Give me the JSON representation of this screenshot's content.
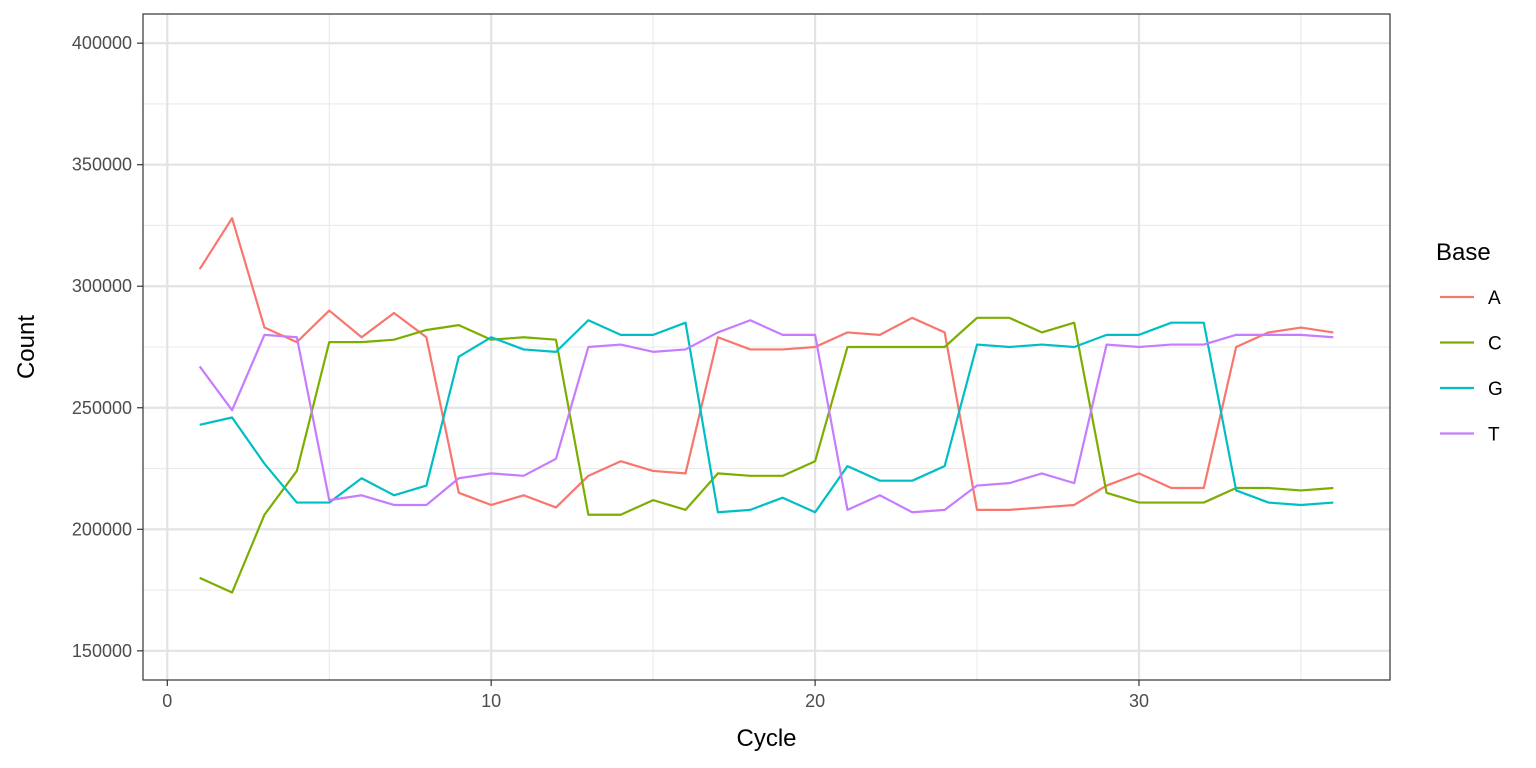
{
  "chart_data": {
    "type": "line",
    "title": "",
    "xlabel": "Cycle",
    "ylabel": "Count",
    "xlim": [
      -0.75,
      37.75
    ],
    "ylim": [
      138000,
      412000
    ],
    "x_ticks": [
      0,
      10,
      20,
      30
    ],
    "y_ticks": [
      150000,
      200000,
      250000,
      300000,
      350000,
      400000
    ],
    "x_tick_labels": [
      "0",
      "10",
      "20",
      "30"
    ],
    "y_tick_labels": [
      "150000",
      "200000",
      "250000",
      "300000",
      "350000",
      "400000"
    ],
    "grid": true,
    "legend": {
      "title": "Base",
      "position": "right"
    },
    "x": [
      1,
      2,
      3,
      4,
      5,
      6,
      7,
      8,
      9,
      10,
      11,
      12,
      13,
      14,
      15,
      16,
      17,
      18,
      19,
      20,
      21,
      22,
      23,
      24,
      25,
      26,
      27,
      28,
      29,
      30,
      31,
      32,
      33,
      34,
      35,
      36
    ],
    "series": [
      {
        "name": "A",
        "color": "#F8766D",
        "values": [
          307000,
          328000,
          283000,
          277000,
          290000,
          279000,
          289000,
          279000,
          215000,
          210000,
          214000,
          209000,
          222000,
          228000,
          224000,
          223000,
          279000,
          274000,
          274000,
          275000,
          281000,
          280000,
          287000,
          281000,
          208000,
          208000,
          209000,
          210000,
          218000,
          223000,
          217000,
          217000,
          275000,
          281000,
          283000,
          281000
        ]
      },
      {
        "name": "C",
        "color": "#7CAE00",
        "values": [
          180000,
          174000,
          206000,
          224000,
          277000,
          277000,
          278000,
          282000,
          284000,
          278000,
          279000,
          278000,
          206000,
          206000,
          212000,
          208000,
          223000,
          222000,
          222000,
          228000,
          275000,
          275000,
          275000,
          275000,
          287000,
          287000,
          281000,
          285000,
          215000,
          211000,
          211000,
          211000,
          217000,
          217000,
          216000,
          217000
        ]
      },
      {
        "name": "G",
        "color": "#00BFC4",
        "values": [
          243000,
          246000,
          227000,
          211000,
          211000,
          221000,
          214000,
          218000,
          271000,
          279000,
          274000,
          273000,
          286000,
          280000,
          280000,
          285000,
          207000,
          208000,
          213000,
          207000,
          226000,
          220000,
          220000,
          226000,
          276000,
          275000,
          276000,
          275000,
          280000,
          280000,
          285000,
          285000,
          216000,
          211000,
          210000,
          211000
        ]
      },
      {
        "name": "T",
        "color": "#C77CFF",
        "values": [
          267000,
          249000,
          280000,
          279000,
          212000,
          214000,
          210000,
          210000,
          221000,
          223000,
          222000,
          229000,
          275000,
          276000,
          273000,
          274000,
          281000,
          286000,
          280000,
          280000,
          208000,
          214000,
          207000,
          208000,
          218000,
          219000,
          223000,
          219000,
          276000,
          275000,
          276000,
          276000,
          280000,
          280000,
          280000,
          279000
        ]
      }
    ]
  }
}
